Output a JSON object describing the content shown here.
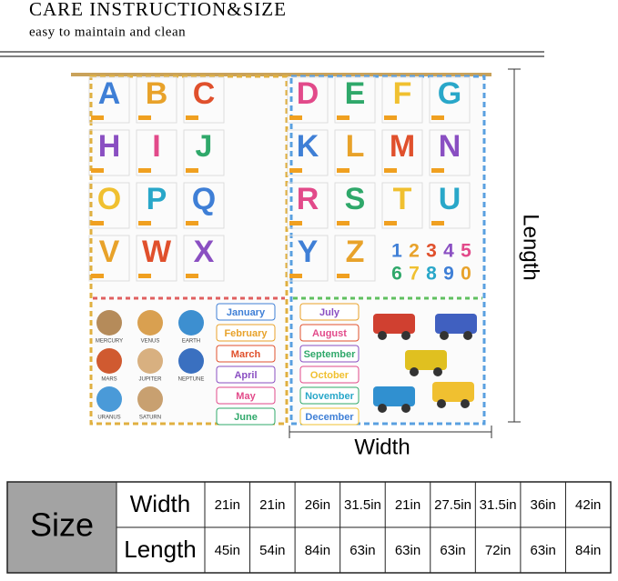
{
  "header": {
    "title": "CARE INSTRUCTION&SIZE",
    "subtitle": "easy to maintain and clean"
  },
  "curtain": {
    "left": {
      "letters": [
        [
          "A",
          "B",
          "C"
        ],
        [
          "H",
          "I",
          "J"
        ],
        [
          "O",
          "P",
          "Q"
        ],
        [
          "V",
          "W",
          "X"
        ]
      ],
      "planets": [
        "MERCURY",
        "VENUS",
        "EARTH",
        "MARS",
        "JUPITER",
        "NEPTUNE",
        "URANUS",
        "SATURN"
      ],
      "months": [
        "January",
        "February",
        "March",
        "April",
        "May",
        "June"
      ]
    },
    "right": {
      "letters": [
        [
          "D",
          "E",
          "F",
          "G"
        ],
        [
          "K",
          "L",
          "M",
          "N"
        ],
        [
          "R",
          "S",
          "T",
          "U"
        ],
        [
          "Y",
          "Z"
        ]
      ],
      "numbers": [
        [
          "1",
          "2",
          "3",
          "4",
          "5"
        ],
        [
          "6",
          "7",
          "8",
          "9",
          "0"
        ]
      ],
      "months": [
        "July",
        "August",
        "September",
        "October",
        "November",
        "December"
      ]
    }
  },
  "dimensions": {
    "length": "Length",
    "width": "Width"
  },
  "table": {
    "header": "Size",
    "rows": [
      {
        "label": "Width",
        "cells": [
          "21in",
          "21in",
          "26in",
          "31.5in",
          "21in",
          "27.5in",
          "31.5in",
          "36in",
          "42in"
        ]
      },
      {
        "label": "Length",
        "cells": [
          "45in",
          "54in",
          "84in",
          "63in",
          "63in",
          "63in",
          "72in",
          "63in",
          "84in"
        ]
      }
    ]
  }
}
